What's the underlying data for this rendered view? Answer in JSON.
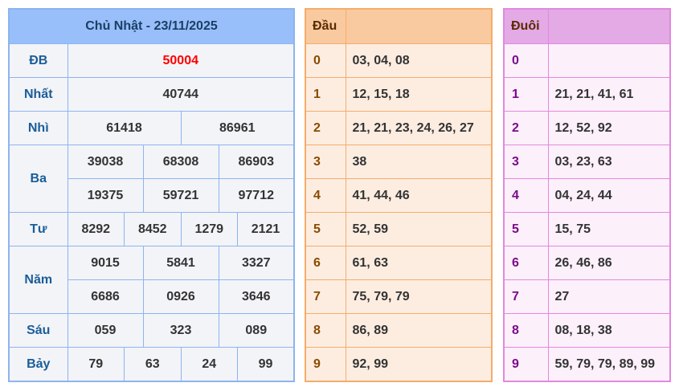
{
  "results": {
    "title": "Chủ Nhật - 23/11/2025",
    "rows": [
      {
        "label": "ĐB",
        "values": [
          "50004"
        ]
      },
      {
        "label": "Nhất",
        "values": [
          "40744"
        ]
      },
      {
        "label": "Nhì",
        "values": [
          "61418",
          "86961"
        ]
      },
      {
        "label": "Ba",
        "values": [
          "39038",
          "68308",
          "86903",
          "19375",
          "59721",
          "97712"
        ]
      },
      {
        "label": "Tư",
        "values": [
          "8292",
          "8452",
          "1279",
          "2121"
        ]
      },
      {
        "label": "Năm",
        "values": [
          "9015",
          "5841",
          "3327",
          "6686",
          "0926",
          "3646"
        ]
      },
      {
        "label": "Sáu",
        "values": [
          "059",
          "323",
          "089"
        ]
      },
      {
        "label": "Bảy",
        "values": [
          "79",
          "63",
          "24",
          "99"
        ]
      }
    ],
    "special_color": "#ff0000"
  },
  "dau": {
    "header": "Đầu",
    "rows": [
      {
        "k": "0",
        "v": "03, 04, 08"
      },
      {
        "k": "1",
        "v": "12, 15, 18"
      },
      {
        "k": "2",
        "v": "21, 21, 23, 24, 26, 27"
      },
      {
        "k": "3",
        "v": "38"
      },
      {
        "k": "4",
        "v": "41, 44, 46"
      },
      {
        "k": "5",
        "v": "52, 59"
      },
      {
        "k": "6",
        "v": "61, 63"
      },
      {
        "k": "7",
        "v": "75, 79, 79"
      },
      {
        "k": "8",
        "v": "86, 89"
      },
      {
        "k": "9",
        "v": "92, 99"
      }
    ]
  },
  "duoi": {
    "header": "Đuôi",
    "rows": [
      {
        "k": "0",
        "v": ""
      },
      {
        "k": "1",
        "v": "21, 21, 41, 61"
      },
      {
        "k": "2",
        "v": "12, 52, 92"
      },
      {
        "k": "3",
        "v": "03, 23, 63"
      },
      {
        "k": "4",
        "v": "04, 24, 44"
      },
      {
        "k": "5",
        "v": "15, 75"
      },
      {
        "k": "6",
        "v": "26, 46, 86"
      },
      {
        "k": "7",
        "v": "27"
      },
      {
        "k": "8",
        "v": "08, 18, 38"
      },
      {
        "k": "9",
        "v": "59, 79, 79, 89, 99"
      }
    ]
  }
}
